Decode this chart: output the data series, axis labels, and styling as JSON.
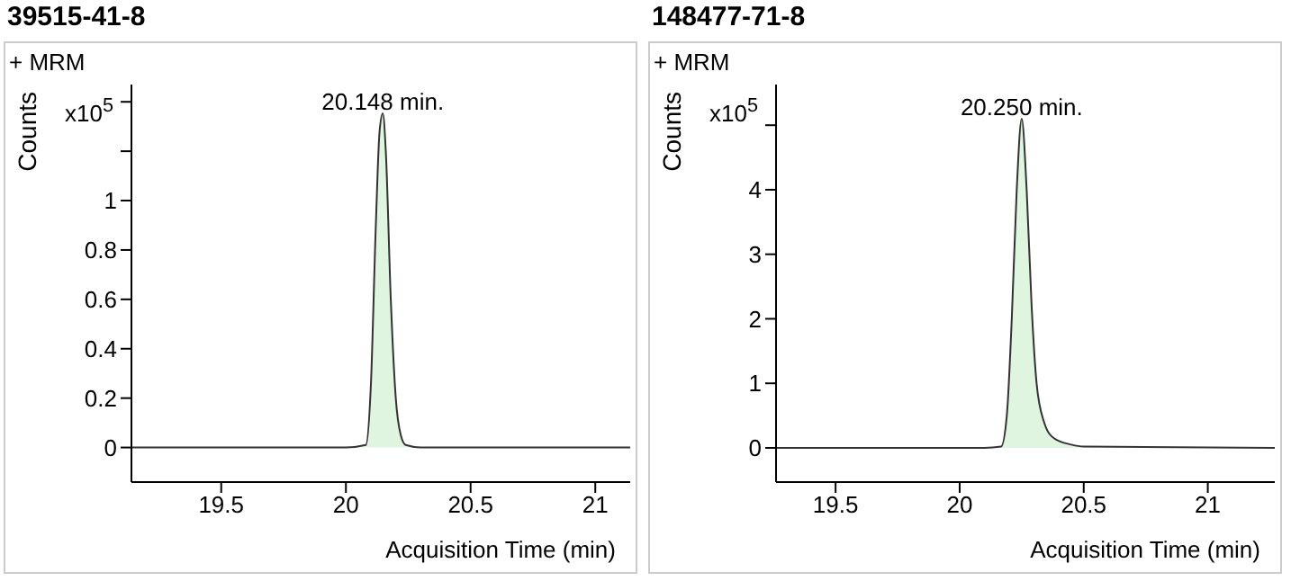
{
  "chart_data": [
    {
      "type": "area",
      "title": "39515-41-8",
      "xlabel": "Acquisition Time (min)",
      "ylabel": "Counts",
      "annotations": [
        "+ MRM",
        "x10$^{5}$",
        {
          "text": "20.148 min.",
          "x": 20.148,
          "y": 1.353
        }
      ],
      "x": [
        19.14,
        20.0,
        20.08,
        20.1,
        20.12,
        20.135,
        20.148,
        20.16,
        20.18,
        20.2,
        20.22,
        20.24,
        20.3,
        21.14
      ],
      "series": [
        {
          "color": "#e0f5e0",
          "values": [
            0,
            0,
            0.01,
            0.25,
            0.9,
            1.28,
            1.353,
            1.2,
            0.6,
            0.2,
            0.05,
            0.01,
            0,
            0
          ]
        }
      ],
      "xlim": [
        19.14,
        21.14
      ],
      "xticks": [
        19.5,
        20,
        20.5,
        21
      ],
      "ylim": [
        -0.14,
        1.47
      ],
      "yticks": [
        0,
        0.2,
        0.4,
        0.6,
        0.8,
        1,
        {
          "value": 1.2,
          "label": null
        },
        {
          "value": 1.4,
          "label": null
        }
      ],
      "grid": false,
      "legend": false
    },
    {
      "type": "area",
      "title": "148477-71-8",
      "xlabel": "Acquisition Time (min)",
      "ylabel": "Counts",
      "annotations": [
        "+ MRM",
        "x10$^{5}$",
        {
          "text": "20.250 min.",
          "x": 20.25,
          "y": 5.1
        }
      ],
      "x": [
        19.26,
        20.1,
        20.167,
        20.19,
        20.21,
        20.23,
        20.25,
        20.27,
        20.29,
        20.31,
        20.34,
        20.38,
        20.45,
        20.5,
        21.27
      ],
      "series": [
        {
          "color": "#e0f5e0",
          "values": [
            0,
            0,
            0.02,
            0.5,
            2,
            4,
            5.1,
            4,
            2.2,
            1,
            0.4,
            0.15,
            0.05,
            0.02,
            0
          ]
        }
      ],
      "xlim": [
        19.26,
        21.27
      ],
      "xticks": [
        19.5,
        20,
        20.5,
        21
      ],
      "ylim": [
        -0.53,
        5.63
      ],
      "yticks": [
        0,
        1,
        2,
        3,
        4,
        {
          "value": 5,
          "label": null
        }
      ],
      "grid": false,
      "legend": false
    }
  ]
}
